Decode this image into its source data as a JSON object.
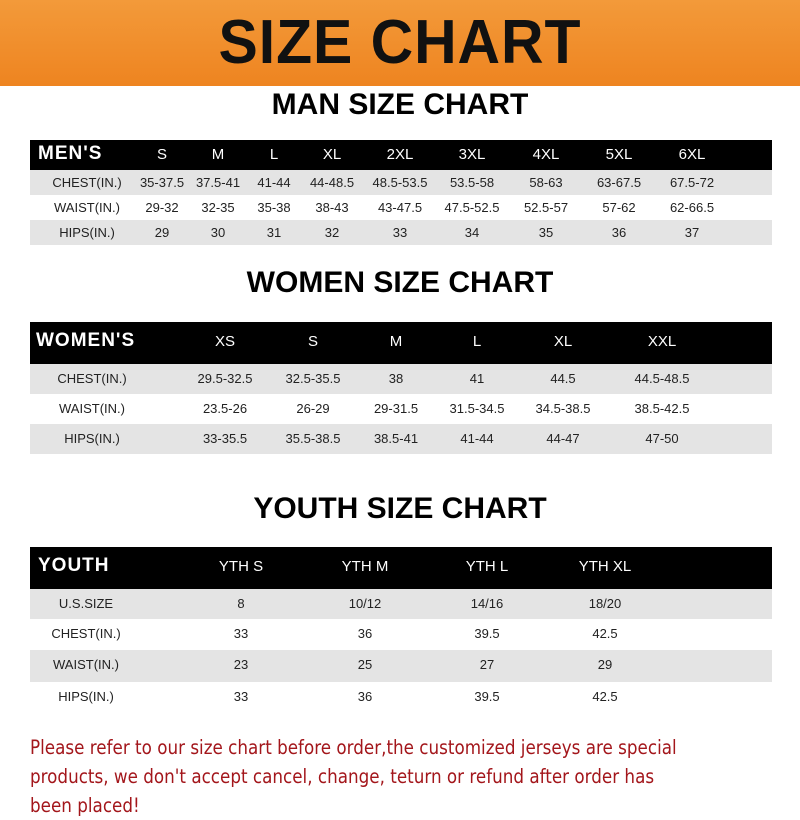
{
  "banner_title": "SIZE CHART",
  "tables": [
    {
      "title": "MAN SIZE CHART",
      "header": [
        "MEN'S",
        "S",
        "M",
        "L",
        "XL",
        "2XL",
        "3XL",
        "4XL",
        "5XL",
        "6XL"
      ],
      "rows": [
        [
          "CHEST(IN.)",
          "35-37.5",
          "37.5-41",
          "41-44",
          "44-48.5",
          "48.5-53.5",
          "53.5-58",
          "58-63",
          "63-67.5",
          "67.5-72"
        ],
        [
          "WAIST(IN.)",
          "29-32",
          "32-35",
          "35-38",
          "38-43",
          "43-47.5",
          "47.5-52.5",
          "52.5-57",
          "57-62",
          "62-66.5"
        ],
        [
          "HIPS(IN.)",
          "29",
          "30",
          "31",
          "32",
          "33",
          "34",
          "35",
          "36",
          "37"
        ]
      ]
    },
    {
      "title": "WOMEN SIZE CHART",
      "header": [
        "WOMEN'S",
        "XS",
        "S",
        "M",
        "L",
        "XL",
        "XXL"
      ],
      "rows": [
        [
          "CHEST(IN.)",
          "29.5-32.5",
          "32.5-35.5",
          "38",
          "41",
          "44.5",
          "44.5-48.5"
        ],
        [
          "WAIST(IN.)",
          "23.5-26",
          "26-29",
          "29-31.5",
          "31.5-34.5",
          "34.5-38.5",
          "38.5-42.5"
        ],
        [
          "HIPS(IN.)",
          "33-35.5",
          "35.5-38.5",
          "38.5-41",
          "41-44",
          "44-47",
          "47-50"
        ]
      ]
    },
    {
      "title": "YOUTH SIZE CHART",
      "header": [
        "YOUTH",
        "YTH S",
        "YTH M",
        "YTH L",
        "YTH XL"
      ],
      "rows": [
        [
          "U.S.SIZE",
          "8",
          "10/12",
          "14/16",
          "18/20"
        ],
        [
          "CHEST(IN.)",
          "33",
          "36",
          "39.5",
          "42.5"
        ],
        [
          "WAIST(IN.)",
          "23",
          "25",
          "27",
          "29"
        ],
        [
          "HIPS(IN.)",
          "33",
          "36",
          "39.5",
          "42.5"
        ]
      ]
    }
  ],
  "notice": "Please refer to our size chart before order,the customized jerseys are special products, we don't accept cancel, change, teturn or refund after order has been placed!",
  "colors": {
    "banner": "#ee8420",
    "header_row": "#000000",
    "stripe": "#e4e4e4",
    "notice": "#a3161b"
  }
}
